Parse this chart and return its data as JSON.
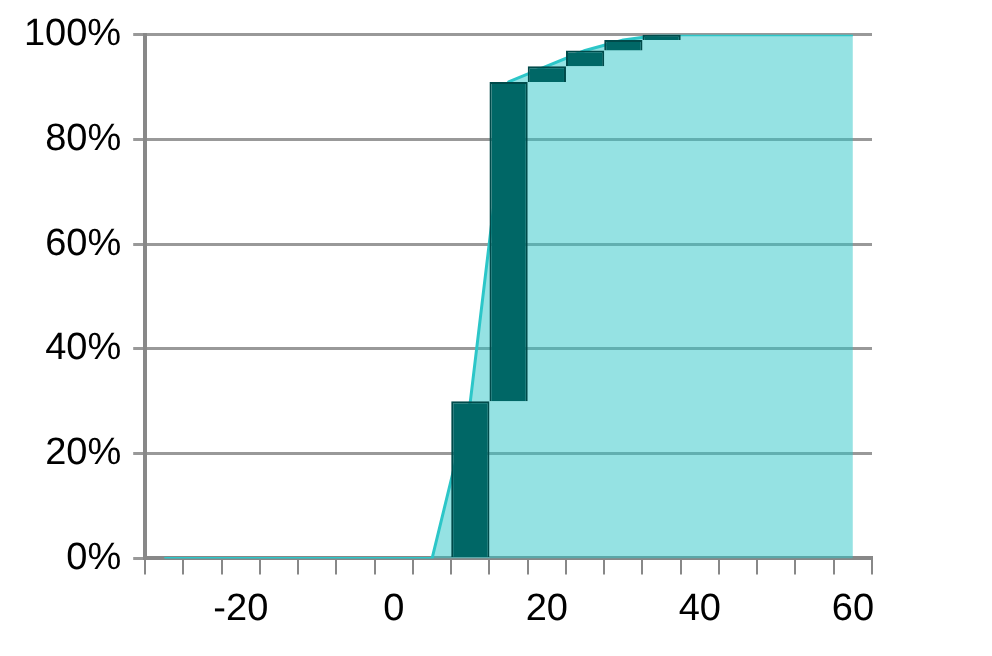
{
  "chart_data": {
    "type": "area",
    "xlim": [
      -32.5,
      62.5
    ],
    "ylim": [
      0,
      100
    ],
    "xticks": [
      {
        "value": -32.5,
        "label": null
      },
      {
        "value": -27.5,
        "label": null
      },
      -20,
      {
        "value": -22.5,
        "label": null
      },
      {
        "value": -17.5,
        "label": null
      },
      {
        "value": -12.5,
        "label": null
      },
      {
        "value": -7.5,
        "label": null
      },
      0,
      {
        "value": -2.5,
        "label": null
      },
      {
        "value": 2.5,
        "label": null
      },
      {
        "value": 7.5,
        "label": null
      },
      {
        "value": 12.5,
        "label": null
      },
      20,
      {
        "value": 17.5,
        "label": null
      },
      {
        "value": 22.5,
        "label": null
      },
      {
        "value": 27.5,
        "label": null
      },
      {
        "value": 32.5,
        "label": null
      },
      40,
      {
        "value": 37.5,
        "label": null
      },
      {
        "value": 42.5,
        "label": null
      },
      {
        "value": 47.5,
        "label": null
      },
      {
        "value": 52.5,
        "label": null
      },
      60,
      {
        "value": 57.5,
        "label": null
      },
      {
        "value": 62.5,
        "label": null
      }
    ],
    "yticks": [
      {
        "value": 0,
        "label": "0%"
      },
      {
        "value": 20,
        "label": "20%"
      },
      {
        "value": 40,
        "label": "40%"
      },
      {
        "value": 60,
        "label": "60%"
      },
      {
        "value": 80,
        "label": "80%"
      },
      {
        "value": 100,
        "label": "100%"
      }
    ],
    "grid": "y",
    "legend": false,
    "series": [
      {
        "color": "#2cc6c8",
        "x": [
          -30,
          5,
          10,
          15,
          20,
          25,
          30,
          35,
          60
        ],
        "values": [
          0,
          0,
          30,
          91,
          94,
          97,
          99,
          100,
          100
        ]
      },
      {
        "type": "bar",
        "color": "#006766",
        "x": [
          10,
          15,
          20,
          25,
          30,
          35
        ],
        "base": [
          0,
          30,
          91,
          94,
          97,
          99
        ],
        "values": [
          30,
          61,
          3,
          3,
          2,
          1
        ]
      }
    ]
  }
}
